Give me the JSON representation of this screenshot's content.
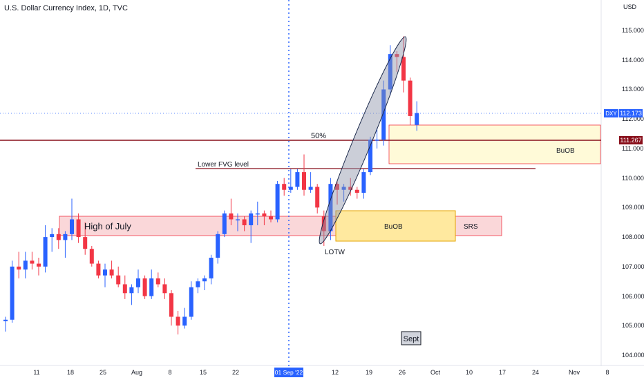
{
  "header": {
    "title": "U.S. Dollar Currency Index, 1D, TVC",
    "currency": "USD"
  },
  "price_scale": {
    "ticks": [
      "115.000",
      "114.000",
      "113.000",
      "112.000",
      "111.000",
      "110.000",
      "109.000",
      "108.000",
      "107.000",
      "106.000",
      "105.000",
      "104.000"
    ],
    "symbol_tag": "DXY",
    "last_price": "112.173",
    "line_price": "111.267"
  },
  "time_scale": {
    "labels": [
      "11",
      "18",
      "25",
      "Aug",
      "8",
      "15",
      "22",
      "01 Sep '22",
      "12",
      "19",
      "26",
      "Oct",
      "10",
      "17",
      "24",
      "Nov",
      "8"
    ],
    "highlight": "01 Sep '22"
  },
  "annotations": {
    "fifty": "50%",
    "lower_fvg": "Lower FVG level",
    "high_of_july": "High of July",
    "buob_upper": "BuOB",
    "buob_lower": "BuOB",
    "srs": "SRS",
    "lotw": "LOTW",
    "sept": "Sept"
  },
  "colors": {
    "up": "#2962ff",
    "down": "#f23645",
    "zone_pink": "#f8c9cc",
    "zone_yellow": "#ffe89a",
    "zone_light_yellow": "#fffad8",
    "hline": "#880e1a",
    "ellipse": "#8c93a8"
  },
  "chart_data": {
    "type": "candlestick",
    "title": "U.S. Dollar Currency Index, 1D, TVC",
    "ylim": [
      103.8,
      115.5
    ],
    "grid": false,
    "last_price": 112.173,
    "horizontal_lines": [
      {
        "label": "",
        "price": 111.267
      },
      {
        "label": "Lower FVG level",
        "price": 110.35
      }
    ],
    "zones": [
      {
        "label": "High of July",
        "from": "Jul 14",
        "to": "Sep 12",
        "top": 108.7,
        "bottom": 108.1
      },
      {
        "label": "BuOB",
        "from": "Sep 12",
        "to": "Oct 5",
        "top": 108.9,
        "bottom": 107.9
      },
      {
        "label": "SRS",
        "from": "Oct 5",
        "to": "Oct 17",
        "top": 108.7,
        "bottom": 108.1
      },
      {
        "label": "BuOB",
        "from": "Sep 22",
        "to": "Nov 10",
        "top": 111.8,
        "bottom": 110.5
      }
    ],
    "candles": [
      {
        "date": "Jul 06",
        "o": 105.15,
        "h": 105.3,
        "l": 104.8,
        "c": 105.2
      },
      {
        "date": "Jul 07",
        "o": 105.2,
        "h": 107.2,
        "l": 105.1,
        "c": 107.0
      },
      {
        "date": "Jul 08",
        "o": 107.0,
        "h": 107.5,
        "l": 106.6,
        "c": 106.9
      },
      {
        "date": "Jul 11",
        "o": 106.9,
        "h": 107.5,
        "l": 106.6,
        "c": 107.2
      },
      {
        "date": "Jul 12",
        "o": 107.2,
        "h": 107.5,
        "l": 106.9,
        "c": 107.1
      },
      {
        "date": "Jul 13",
        "o": 107.1,
        "h": 107.3,
        "l": 106.7,
        "c": 107.0
      },
      {
        "date": "Jul 14",
        "o": 107.0,
        "h": 108.4,
        "l": 106.8,
        "c": 108.0
      },
      {
        "date": "Jul 15",
        "o": 108.0,
        "h": 108.3,
        "l": 107.5,
        "c": 108.1
      },
      {
        "date": "Jul 18",
        "o": 108.1,
        "h": 108.3,
        "l": 107.6,
        "c": 107.9
      },
      {
        "date": "Jul 19",
        "o": 107.9,
        "h": 108.2,
        "l": 107.3,
        "c": 108.1
      },
      {
        "date": "Jul 20",
        "o": 108.1,
        "h": 109.3,
        "l": 107.9,
        "c": 108.6
      },
      {
        "date": "Jul 21",
        "o": 108.6,
        "h": 108.8,
        "l": 107.8,
        "c": 108.0
      },
      {
        "date": "Jul 22",
        "o": 108.0,
        "h": 108.5,
        "l": 107.4,
        "c": 107.6
      },
      {
        "date": "Jul 25",
        "o": 107.6,
        "h": 107.7,
        "l": 107.0,
        "c": 107.1
      },
      {
        "date": "Jul 26",
        "o": 107.1,
        "h": 107.2,
        "l": 106.6,
        "c": 106.7
      },
      {
        "date": "Jul 27",
        "o": 106.7,
        "h": 107.1,
        "l": 106.3,
        "c": 106.9
      },
      {
        "date": "Jul 28",
        "o": 106.9,
        "h": 107.2,
        "l": 106.6,
        "c": 106.7
      },
      {
        "date": "Jul 29",
        "o": 106.7,
        "h": 107.0,
        "l": 106.3,
        "c": 106.4
      },
      {
        "date": "Aug 01",
        "o": 106.4,
        "h": 106.7,
        "l": 105.9,
        "c": 106.1
      },
      {
        "date": "Aug 02",
        "o": 106.1,
        "h": 106.4,
        "l": 105.7,
        "c": 106.3
      },
      {
        "date": "Aug 03",
        "o": 106.3,
        "h": 106.9,
        "l": 106.1,
        "c": 106.6
      },
      {
        "date": "Aug 04",
        "o": 106.6,
        "h": 106.7,
        "l": 105.9,
        "c": 106.0
      },
      {
        "date": "Aug 05",
        "o": 106.0,
        "h": 106.9,
        "l": 105.9,
        "c": 106.6
      },
      {
        "date": "Aug 08",
        "o": 106.6,
        "h": 106.8,
        "l": 106.3,
        "c": 106.4
      },
      {
        "date": "Aug 09",
        "o": 106.4,
        "h": 106.6,
        "l": 105.9,
        "c": 106.1
      },
      {
        "date": "Aug 10",
        "o": 106.1,
        "h": 106.2,
        "l": 105.0,
        "c": 105.3
      },
      {
        "date": "Aug 11",
        "o": 105.3,
        "h": 105.5,
        "l": 104.7,
        "c": 105.0
      },
      {
        "date": "Aug 12",
        "o": 105.0,
        "h": 105.6,
        "l": 104.9,
        "c": 105.3
      },
      {
        "date": "Aug 15",
        "o": 105.3,
        "h": 106.5,
        "l": 105.2,
        "c": 106.3
      },
      {
        "date": "Aug 16",
        "o": 106.3,
        "h": 106.6,
        "l": 106.1,
        "c": 106.5
      },
      {
        "date": "Aug 17",
        "o": 106.5,
        "h": 106.7,
        "l": 106.2,
        "c": 106.6
      },
      {
        "date": "Aug 18",
        "o": 106.6,
        "h": 107.4,
        "l": 106.4,
        "c": 107.3
      },
      {
        "date": "Aug 19",
        "o": 107.3,
        "h": 108.2,
        "l": 107.1,
        "c": 108.1
      },
      {
        "date": "Aug 22",
        "o": 108.1,
        "h": 108.9,
        "l": 108.0,
        "c": 108.8
      },
      {
        "date": "Aug 23",
        "o": 108.8,
        "h": 109.3,
        "l": 108.4,
        "c": 108.6
      },
      {
        "date": "Aug 24",
        "o": 108.6,
        "h": 108.8,
        "l": 108.2,
        "c": 108.6
      },
      {
        "date": "Aug 25",
        "o": 108.6,
        "h": 108.7,
        "l": 108.2,
        "c": 108.4
      },
      {
        "date": "Aug 26",
        "o": 108.4,
        "h": 108.9,
        "l": 107.8,
        "c": 108.8
      },
      {
        "date": "Aug 29",
        "o": 108.8,
        "h": 109.2,
        "l": 108.4,
        "c": 108.8
      },
      {
        "date": "Aug 30",
        "o": 108.8,
        "h": 108.9,
        "l": 108.4,
        "c": 108.7
      },
      {
        "date": "Aug 31",
        "o": 108.7,
        "h": 108.9,
        "l": 108.5,
        "c": 108.6
      },
      {
        "date": "Sep 01",
        "o": 108.6,
        "h": 109.9,
        "l": 108.5,
        "c": 109.8
      },
      {
        "date": "Sep 02",
        "o": 109.8,
        "h": 110.0,
        "l": 109.4,
        "c": 109.6
      },
      {
        "date": "Sep 05",
        "o": 109.6,
        "h": 110.3,
        "l": 109.5,
        "c": 109.7
      },
      {
        "date": "Sep 06",
        "o": 109.7,
        "h": 110.3,
        "l": 109.6,
        "c": 110.2
      },
      {
        "date": "Sep 07",
        "o": 110.2,
        "h": 110.8,
        "l": 109.4,
        "c": 109.6
      },
      {
        "date": "Sep 08",
        "o": 109.6,
        "h": 110.2,
        "l": 109.5,
        "c": 109.7
      },
      {
        "date": "Sep 09",
        "o": 109.7,
        "h": 109.8,
        "l": 108.8,
        "c": 109.0
      },
      {
        "date": "Sep 12",
        "o": 108.7,
        "h": 108.9,
        "l": 107.7,
        "c": 108.2
      },
      {
        "date": "Sep 13",
        "o": 108.2,
        "h": 110.0,
        "l": 107.9,
        "c": 109.8
      },
      {
        "date": "Sep 14",
        "o": 109.8,
        "h": 109.9,
        "l": 109.1,
        "c": 109.6
      },
      {
        "date": "Sep 15",
        "o": 109.6,
        "h": 109.8,
        "l": 109.2,
        "c": 109.7
      },
      {
        "date": "Sep 16",
        "o": 109.7,
        "h": 110.0,
        "l": 109.4,
        "c": 109.6
      },
      {
        "date": "Sep 19",
        "o": 109.6,
        "h": 109.7,
        "l": 109.3,
        "c": 109.5
      },
      {
        "date": "Sep 20",
        "o": 109.5,
        "h": 110.3,
        "l": 109.3,
        "c": 110.2
      },
      {
        "date": "Sep 21",
        "o": 110.2,
        "h": 111.4,
        "l": 110.1,
        "c": 111.3
      },
      {
        "date": "Sep 22",
        "o": 111.3,
        "h": 111.7,
        "l": 111.0,
        "c": 111.3
      },
      {
        "date": "Sep 23",
        "o": 111.3,
        "h": 113.3,
        "l": 111.1,
        "c": 113.0
      },
      {
        "date": "Sep 26",
        "o": 113.0,
        "h": 114.5,
        "l": 112.8,
        "c": 114.2
      },
      {
        "date": "Sep 27",
        "o": 114.2,
        "h": 114.3,
        "l": 113.6,
        "c": 114.1
      },
      {
        "date": "Sep 28",
        "o": 114.1,
        "h": 114.8,
        "l": 112.9,
        "c": 113.3
      },
      {
        "date": "Sep 29",
        "o": 113.3,
        "h": 113.4,
        "l": 111.8,
        "c": 112.1
      },
      {
        "date": "Sep 30",
        "o": 111.8,
        "h": 112.6,
        "l": 111.6,
        "c": 112.2
      }
    ]
  }
}
